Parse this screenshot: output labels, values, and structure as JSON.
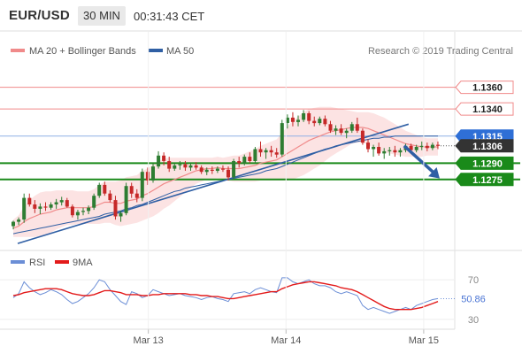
{
  "header": {
    "symbol": "EUR/USD",
    "timeframe": "30 MIN",
    "time": "00:31:43 CET"
  },
  "legend": {
    "ma20_label": "MA 20 + Bollinger Bands",
    "ma50_label": "MA 50",
    "credit": "Research © 2019 Trading Central",
    "rsi_label": "RSI",
    "ma9_label": "9MA"
  },
  "colors": {
    "bull": "#2e7d32",
    "bear": "#c62828",
    "ma20": "#f08a8a",
    "band_fill": "#fbdada",
    "ma50": "#2f5fa4",
    "trend": "#2f5fa4",
    "support": "#1a8a1a",
    "resistance": "#f08a8a",
    "ma50_tag": "#2f6fd6",
    "price_tag": "#333333",
    "rsi": "#6b8ed6",
    "rsi_ma": "#e31a1a",
    "arrow": "#2f5fa4"
  },
  "chart_data": [
    {
      "type": "candlestick",
      "title": "EUR/USD 30 MIN",
      "y_range": [
        1.1212,
        1.1385
      ],
      "x_range": [
        0,
        100
      ],
      "x_ticks": [
        {
          "x": 33,
          "label": "Mar 13"
        },
        {
          "x": 64,
          "label": "Mar 14"
        },
        {
          "x": 95,
          "label": "Mar 15"
        }
      ],
      "levels": [
        {
          "label": "1.1360",
          "value": 1.136,
          "kind": "resistance",
          "tag_style": "outline-red"
        },
        {
          "label": "1.1340",
          "value": 1.134,
          "kind": "resistance",
          "tag_style": "outline-red"
        },
        {
          "label": "1.1315",
          "value": 1.1315,
          "kind": "ma50",
          "tag_style": "filled-blue"
        },
        {
          "label": "1.1306",
          "value": 1.1306,
          "kind": "last-price",
          "tag_style": "filled-dark"
        },
        {
          "label": "1.1290",
          "value": 1.129,
          "kind": "support",
          "tag_style": "filled-green"
        },
        {
          "label": "1.1275",
          "value": 1.1275,
          "kind": "support",
          "tag_style": "filled-green"
        }
      ],
      "trendline": {
        "x": [
          0,
          90
        ],
        "y": [
          1.1216,
          1.1326
        ]
      },
      "forecast_arrow": {
        "x": [
          89,
          97
        ],
        "y": [
          1.1306,
          1.1276
        ]
      },
      "ohlc": [
        [
          1.1232,
          1.1237,
          1.1229,
          1.1236
        ],
        [
          1.1236,
          1.124,
          1.1233,
          1.1238
        ],
        [
          1.1238,
          1.1262,
          1.1235,
          1.1258
        ],
        [
          1.1258,
          1.1262,
          1.125,
          1.1252
        ],
        [
          1.1252,
          1.1256,
          1.1244,
          1.1248
        ],
        [
          1.1248,
          1.1253,
          1.1243,
          1.125
        ],
        [
          1.125,
          1.1254,
          1.1246,
          1.1249
        ],
        [
          1.1249,
          1.1254,
          1.1247,
          1.1252
        ],
        [
          1.1252,
          1.1257,
          1.1248,
          1.1254
        ],
        [
          1.1254,
          1.1259,
          1.1251,
          1.1256
        ],
        [
          1.1256,
          1.1258,
          1.1249,
          1.125
        ],
        [
          1.125,
          1.1252,
          1.124,
          1.1242
        ],
        [
          1.1242,
          1.1247,
          1.1238,
          1.1245
        ],
        [
          1.1245,
          1.1249,
          1.1242,
          1.1246
        ],
        [
          1.1246,
          1.1251,
          1.1243,
          1.1249
        ],
        [
          1.1249,
          1.1262,
          1.1247,
          1.126
        ],
        [
          1.126,
          1.1272,
          1.1258,
          1.127
        ],
        [
          1.127,
          1.1273,
          1.126,
          1.1262
        ],
        [
          1.1262,
          1.1265,
          1.1254,
          1.1256
        ],
        [
          1.1256,
          1.126,
          1.1238,
          1.1241
        ],
        [
          1.1241,
          1.1246,
          1.1236,
          1.1244
        ],
        [
          1.1244,
          1.1272,
          1.1242,
          1.1269
        ],
        [
          1.1269,
          1.1272,
          1.1258,
          1.1262
        ],
        [
          1.1262,
          1.1266,
          1.1254,
          1.1258
        ],
        [
          1.1258,
          1.1285,
          1.1255,
          1.1282
        ],
        [
          1.1282,
          1.1286,
          1.127,
          1.1274
        ],
        [
          1.1274,
          1.129,
          1.1272,
          1.1287
        ],
        [
          1.1287,
          1.1301,
          1.1285,
          1.1297
        ],
        [
          1.1297,
          1.13,
          1.1288,
          1.1292
        ],
        [
          1.1292,
          1.1296,
          1.1282,
          1.1285
        ],
        [
          1.1285,
          1.129,
          1.1283,
          1.1288
        ],
        [
          1.1288,
          1.1292,
          1.1284,
          1.1289
        ],
        [
          1.1289,
          1.1292,
          1.1283,
          1.1286
        ],
        [
          1.1286,
          1.129,
          1.1283,
          1.1288
        ],
        [
          1.1288,
          1.1291,
          1.1284,
          1.1286
        ],
        [
          1.1286,
          1.1288,
          1.128,
          1.1282
        ],
        [
          1.1282,
          1.1286,
          1.1279,
          1.1284
        ],
        [
          1.1284,
          1.1287,
          1.128,
          1.1283
        ],
        [
          1.1283,
          1.1287,
          1.1281,
          1.1285
        ],
        [
          1.1285,
          1.1288,
          1.1282,
          1.1284
        ],
        [
          1.1284,
          1.1287,
          1.1274,
          1.1277
        ],
        [
          1.1277,
          1.1294,
          1.1275,
          1.1292
        ],
        [
          1.1292,
          1.1296,
          1.1286,
          1.129
        ],
        [
          1.129,
          1.1298,
          1.1288,
          1.1296
        ],
        [
          1.1296,
          1.13,
          1.129,
          1.1292
        ],
        [
          1.1292,
          1.1305,
          1.129,
          1.1303
        ],
        [
          1.1303,
          1.131,
          1.1296,
          1.13
        ],
        [
          1.13,
          1.1304,
          1.1294,
          1.1302
        ],
        [
          1.1302,
          1.1306,
          1.1296,
          1.13
        ],
        [
          1.13,
          1.1304,
          1.1295,
          1.1298
        ],
        [
          1.1298,
          1.133,
          1.1296,
          1.1327
        ],
        [
          1.1327,
          1.1335,
          1.1322,
          1.1332
        ],
        [
          1.1332,
          1.1337,
          1.1324,
          1.1328
        ],
        [
          1.1328,
          1.1334,
          1.1324,
          1.133
        ],
        [
          1.133,
          1.1339,
          1.1328,
          1.1336
        ],
        [
          1.1336,
          1.1338,
          1.1326,
          1.1329
        ],
        [
          1.1329,
          1.1333,
          1.1324,
          1.1327
        ],
        [
          1.1327,
          1.1333,
          1.1325,
          1.1331
        ],
        [
          1.1331,
          1.1334,
          1.1324,
          1.1326
        ],
        [
          1.1326,
          1.1329,
          1.1318,
          1.132
        ],
        [
          1.132,
          1.1325,
          1.1316,
          1.1322
        ],
        [
          1.1322,
          1.1326,
          1.1316,
          1.1318
        ],
        [
          1.1318,
          1.1322,
          1.1313,
          1.132
        ],
        [
          1.132,
          1.1328,
          1.1318,
          1.1326
        ],
        [
          1.1326,
          1.1332,
          1.1318,
          1.132
        ],
        [
          1.132,
          1.1322,
          1.1307,
          1.1309
        ],
        [
          1.1309,
          1.1312,
          1.13,
          1.1303
        ],
        [
          1.1303,
          1.1307,
          1.1296,
          1.1305
        ],
        [
          1.1305,
          1.1309,
          1.1297,
          1.1299
        ],
        [
          1.1299,
          1.1304,
          1.1294,
          1.1301
        ],
        [
          1.1301,
          1.1305,
          1.1297,
          1.1302
        ],
        [
          1.1302,
          1.1306,
          1.1296,
          1.13
        ],
        [
          1.13,
          1.1304,
          1.1296,
          1.1302
        ],
        [
          1.1302,
          1.1308,
          1.13,
          1.1306
        ],
        [
          1.1306,
          1.1308,
          1.1299,
          1.1302
        ],
        [
          1.1302,
          1.1307,
          1.13,
          1.1305
        ],
        [
          1.1305,
          1.131,
          1.1302,
          1.1306
        ],
        [
          1.1306,
          1.1309,
          1.1301,
          1.1304
        ],
        [
          1.1304,
          1.1309,
          1.1302,
          1.1307
        ],
        [
          1.1307,
          1.131,
          1.1303,
          1.1306
        ]
      ],
      "ma20": [
        1.123,
        1.1232,
        1.1236,
        1.1239,
        1.1241,
        1.1243,
        1.1244,
        1.1245,
        1.1247,
        1.1248,
        1.1249,
        1.1249,
        1.1249,
        1.1249,
        1.1249,
        1.125,
        1.1252,
        1.1254,
        1.1254,
        1.1253,
        1.1253,
        1.1255,
        1.1256,
        1.1257,
        1.126,
        1.1262,
        1.1265,
        1.1268,
        1.1271,
        1.1273,
        1.1275,
        1.1277,
        1.1279,
        1.1281,
        1.1283,
        1.1284,
        1.1285,
        1.1285,
        1.1286,
        1.1285,
        1.1285,
        1.1285,
        1.1285,
        1.1286,
        1.1287,
        1.1288,
        1.129,
        1.1291,
        1.1292,
        1.1293,
        1.1296,
        1.1299,
        1.1302,
        1.1305,
        1.1308,
        1.1311,
        1.1313,
        1.1315,
        1.1317,
        1.1319,
        1.132,
        1.1321,
        1.1322,
        1.1323,
        1.1323,
        1.1323,
        1.1322,
        1.132,
        1.1318,
        1.1316,
        1.1314,
        1.1312,
        1.131,
        1.1308,
        1.1307,
        1.1306,
        1.1305,
        1.1305,
        1.1305,
        1.1305
      ],
      "band_width": [
        0.0008,
        0.001,
        0.0014,
        0.0017,
        0.0019,
        0.002,
        0.002,
        0.0019,
        0.0018,
        0.0017,
        0.0016,
        0.0016,
        0.0015,
        0.0015,
        0.0015,
        0.0016,
        0.0018,
        0.0019,
        0.0019,
        0.002,
        0.0021,
        0.0022,
        0.0022,
        0.0022,
        0.0023,
        0.0023,
        0.0024,
        0.0024,
        0.0023,
        0.0022,
        0.002,
        0.0018,
        0.0016,
        0.0014,
        0.0012,
        0.0011,
        0.001,
        0.001,
        0.001,
        0.001,
        0.0011,
        0.0012,
        0.0012,
        0.0013,
        0.0014,
        0.0015,
        0.0016,
        0.0017,
        0.0018,
        0.0019,
        0.0022,
        0.0025,
        0.0027,
        0.0028,
        0.0029,
        0.0029,
        0.0028,
        0.0027,
        0.0025,
        0.0023,
        0.0021,
        0.0019,
        0.0017,
        0.0015,
        0.0014,
        0.0014,
        0.0015,
        0.0016,
        0.0016,
        0.0016,
        0.0015,
        0.0014,
        0.0013,
        0.0012,
        0.0011,
        0.001,
        0.0009,
        0.0008,
        0.0008,
        0.0008
      ],
      "ma50": [
        1.1225,
        1.1226,
        1.1227,
        1.1228,
        1.1229,
        1.123,
        1.1231,
        1.1232,
        1.1233,
        1.1234,
        1.1235,
        1.1236,
        1.1237,
        1.1238,
        1.1239,
        1.124,
        1.1241,
        1.1243,
        1.1244,
        1.1245,
        1.1246,
        1.1248,
        1.1249,
        1.1251,
        1.1252,
        1.1254,
        1.1256,
        1.1258,
        1.126,
        1.1262,
        1.1264,
        1.1265,
        1.1267,
        1.1268,
        1.1269,
        1.127,
        1.1271,
        1.1272,
        1.1273,
        1.1274,
        1.1275,
        1.1276,
        1.1277,
        1.1278,
        1.1279,
        1.128,
        1.1281,
        1.1283,
        1.1284,
        1.1285,
        1.1287,
        1.1289,
        1.1291,
        1.1293,
        1.1295,
        1.1297,
        1.1299,
        1.1301,
        1.1303,
        1.1304,
        1.1306,
        1.1307,
        1.1308,
        1.1309,
        1.131,
        1.1311,
        1.1312,
        1.1313,
        1.1313,
        1.1314,
        1.1314,
        1.1315,
        1.1315,
        1.1315,
        1.1315,
        1.1315,
        1.1315,
        1.1315,
        1.1315,
        1.1315
      ]
    },
    {
      "type": "line",
      "title": "RSI",
      "y_range": [
        20,
        80
      ],
      "levels": [
        {
          "label": "70",
          "value": 70
        },
        {
          "label": "50.86",
          "value": 50.86
        },
        {
          "label": "30",
          "value": 30
        }
      ],
      "series": [
        {
          "name": "RSI",
          "values": [
            52,
            56,
            68,
            62,
            58,
            55,
            57,
            60,
            58,
            55,
            50,
            46,
            48,
            52,
            56,
            62,
            70,
            68,
            60,
            54,
            48,
            45,
            58,
            56,
            52,
            54,
            60,
            58,
            56,
            54,
            55,
            56,
            54,
            53,
            52,
            50,
            52,
            53,
            51,
            50,
            48,
            56,
            57,
            58,
            56,
            60,
            62,
            60,
            58,
            57,
            72,
            72,
            68,
            66,
            68,
            70,
            66,
            64,
            64,
            62,
            58,
            56,
            58,
            56,
            54,
            44,
            40,
            42,
            40,
            38,
            36,
            38,
            40,
            42,
            40,
            44,
            46,
            48,
            50,
            51
          ]
        },
        {
          "name": "9MA",
          "values": [
            54,
            55,
            57,
            58,
            59,
            60,
            61,
            61,
            61,
            60,
            58,
            56,
            55,
            54,
            54,
            55,
            57,
            59,
            59,
            58,
            57,
            55,
            55,
            55,
            54,
            54,
            55,
            55,
            56,
            56,
            56,
            56,
            56,
            55,
            55,
            54,
            54,
            53,
            53,
            52,
            51,
            51,
            52,
            53,
            54,
            55,
            56,
            57,
            58,
            58,
            61,
            63,
            65,
            66,
            67,
            68,
            68,
            67,
            66,
            65,
            64,
            62,
            61,
            60,
            58,
            55,
            52,
            49,
            46,
            43,
            41,
            40,
            40,
            40,
            40,
            41,
            42,
            44,
            46,
            48
          ]
        }
      ]
    }
  ]
}
